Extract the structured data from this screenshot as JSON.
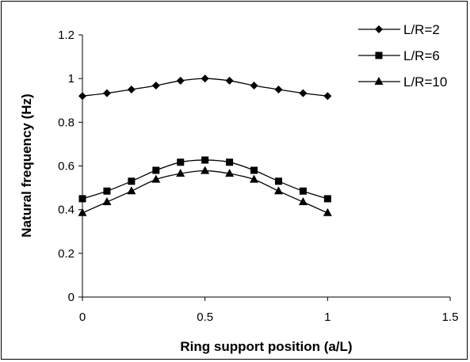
{
  "chart_data": {
    "type": "line",
    "title": "",
    "xlabel": "Ring support position (a/L)",
    "ylabel": "Natural frequency (Hz)",
    "xlim": [
      0,
      1.5
    ],
    "ylim": [
      0,
      1.2
    ],
    "xticks": [
      "0",
      "0.5",
      "1",
      "1.5"
    ],
    "yticks": [
      "0",
      "0.2",
      "0.4",
      "0.6",
      "0.8",
      "1",
      "1.2"
    ],
    "grid": false,
    "legend_position": "top-right",
    "x": [
      0,
      0.1,
      0.2,
      0.3,
      0.4,
      0.5,
      0.6,
      0.7,
      0.8,
      0.9,
      1.0
    ],
    "series": [
      {
        "name": "L/R=2",
        "marker": "diamond",
        "color": "#000000",
        "values": [
          0.92,
          0.933,
          0.95,
          0.968,
          0.99,
          1.0,
          0.99,
          0.968,
          0.95,
          0.933,
          0.92
        ]
      },
      {
        "name": "L/R=6",
        "marker": "square",
        "color": "#000000",
        "values": [
          0.45,
          0.485,
          0.53,
          0.58,
          0.617,
          0.627,
          0.617,
          0.58,
          0.53,
          0.485,
          0.45
        ]
      },
      {
        "name": "L/R=10",
        "marker": "triangle",
        "color": "#000000",
        "values": [
          0.385,
          0.435,
          0.485,
          0.538,
          0.565,
          0.578,
          0.565,
          0.538,
          0.485,
          0.435,
          0.385
        ]
      }
    ]
  }
}
